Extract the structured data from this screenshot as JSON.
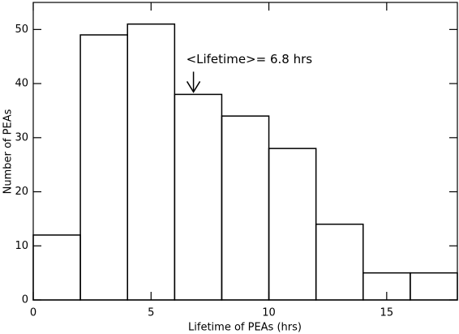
{
  "chart_data": {
    "type": "histogram",
    "xlabel": "Lifetime of PEAs (hrs)",
    "ylabel": "Number of PEAs",
    "bins": [
      0,
      2,
      4,
      6,
      8,
      10,
      12,
      14,
      16,
      18
    ],
    "values": [
      12,
      49,
      51,
      38,
      34,
      28,
      14,
      5,
      5
    ],
    "xlim": [
      0,
      18
    ],
    "ylim": [
      0,
      55
    ],
    "xticks": [
      0,
      5,
      10,
      15
    ],
    "yticks": [
      0,
      10,
      20,
      30,
      40,
      50
    ],
    "grid": false,
    "color": "#000000",
    "annotation": {
      "text": "<Lifetime>= 6.8 hrs",
      "x": 6.8
    }
  }
}
